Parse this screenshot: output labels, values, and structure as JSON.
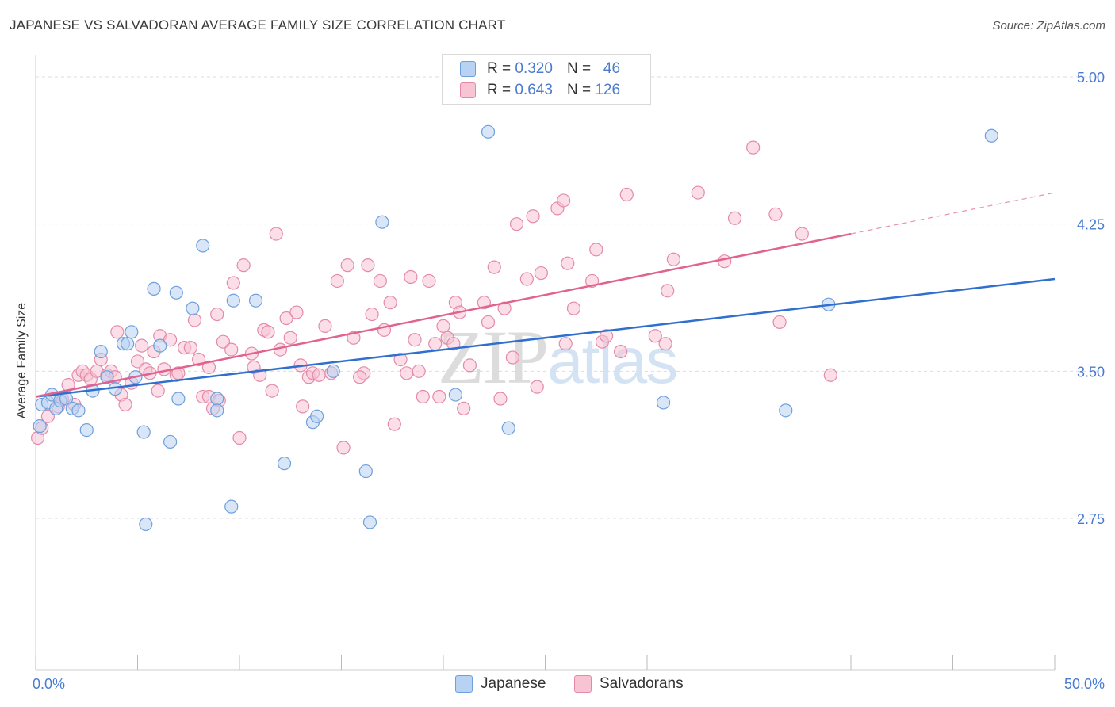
{
  "title": "JAPANESE VS SALVADORAN AVERAGE FAMILY SIZE CORRELATION CHART",
  "source": "Source: ZipAtlas.com",
  "watermark": {
    "part1": "ZIP",
    "part2": "atlas"
  },
  "legend": {
    "rows": [
      {
        "r_label": "R = ",
        "r_value": "0.320",
        "n_label": "N = ",
        "n_value": "46"
      },
      {
        "r_label": "R = ",
        "r_value": "0.643",
        "n_label": "N = ",
        "n_value": "126"
      }
    ]
  },
  "bottom_legend": {
    "series1": "Japanese",
    "series2": "Salvadorans"
  },
  "colors": {
    "japanese_fill": "#b8d2f3",
    "japanese_stroke": "#6f9fdc",
    "japanese_line": "#2f6fd0",
    "salvadoran_fill": "#f8c3d3",
    "salvadoran_stroke": "#e48aa8",
    "salvadoran_line": "#e0628f",
    "tick_text": "#4a7bd0",
    "grid": "#dddddd"
  },
  "chart_data": {
    "type": "scatter",
    "title": "JAPANESE VS SALVADORAN AVERAGE FAMILY SIZE CORRELATION CHART",
    "xlabel": "",
    "ylabel": "Average Family Size",
    "xlim": [
      0,
      50
    ],
    "ylim": [
      2.0,
      5.1
    ],
    "x_tick_labels": [
      "0.0%",
      "50.0%"
    ],
    "y_ticks": [
      2.75,
      3.5,
      4.25,
      5.0
    ],
    "y_tick_labels": [
      "2.75",
      "3.50",
      "4.25",
      "5.00"
    ],
    "grid": "horizontal dashed",
    "legend_position": "top-center",
    "series": [
      {
        "name": "Japanese",
        "R": 0.32,
        "N": 46,
        "trend": {
          "x": [
            0,
            50
          ],
          "y": [
            3.37,
            3.97
          ],
          "dashed_from": null
        },
        "points": [
          [
            0.3,
            3.33
          ],
          [
            0.6,
            3.34
          ],
          [
            0.8,
            3.38
          ],
          [
            1.0,
            3.31
          ],
          [
            1.2,
            3.35
          ],
          [
            1.5,
            3.36
          ],
          [
            1.8,
            3.31
          ],
          [
            2.1,
            3.3
          ],
          [
            2.5,
            3.2
          ],
          [
            2.8,
            3.4
          ],
          [
            3.2,
            3.6
          ],
          [
            3.5,
            3.47
          ],
          [
            3.9,
            3.41
          ],
          [
            4.3,
            3.64
          ],
          [
            4.5,
            3.64
          ],
          [
            4.7,
            3.7
          ],
          [
            4.9,
            3.47
          ],
          [
            5.3,
            3.19
          ],
          [
            5.8,
            3.92
          ],
          [
            6.1,
            3.63
          ],
          [
            6.6,
            3.14
          ],
          [
            6.9,
            3.9
          ],
          [
            7.0,
            3.36
          ],
          [
            7.7,
            3.82
          ],
          [
            8.2,
            4.14
          ],
          [
            8.9,
            3.36
          ],
          [
            8.9,
            3.3
          ],
          [
            9.6,
            2.81
          ],
          [
            9.7,
            3.86
          ],
          [
            10.8,
            3.86
          ],
          [
            12.2,
            3.03
          ],
          [
            13.6,
            3.24
          ],
          [
            13.8,
            3.27
          ],
          [
            14.6,
            3.5
          ],
          [
            16.2,
            2.99
          ],
          [
            16.4,
            2.73
          ],
          [
            17.0,
            4.26
          ],
          [
            20.6,
            3.38
          ],
          [
            22.2,
            4.72
          ],
          [
            23.2,
            3.21
          ],
          [
            30.8,
            3.34
          ],
          [
            36.8,
            3.3
          ],
          [
            38.9,
            3.84
          ],
          [
            46.9,
            4.7
          ],
          [
            5.4,
            2.72
          ],
          [
            0.2,
            3.22
          ]
        ]
      },
      {
        "name": "Salvadorans",
        "R": 0.643,
        "N": 126,
        "trend": {
          "x": [
            0,
            40,
            50
          ],
          "y": [
            3.37,
            4.2,
            4.41
          ],
          "dashed_from": 40
        },
        "points": [
          [
            0.1,
            3.16
          ],
          [
            0.3,
            3.21
          ],
          [
            0.6,
            3.27
          ],
          [
            1.1,
            3.32
          ],
          [
            1.3,
            3.36
          ],
          [
            1.6,
            3.43
          ],
          [
            1.9,
            3.33
          ],
          [
            2.1,
            3.48
          ],
          [
            2.3,
            3.5
          ],
          [
            2.5,
            3.48
          ],
          [
            2.7,
            3.46
          ],
          [
            3.0,
            3.5
          ],
          [
            3.2,
            3.56
          ],
          [
            3.5,
            3.48
          ],
          [
            3.7,
            3.5
          ],
          [
            3.9,
            3.47
          ],
          [
            4.0,
            3.7
          ],
          [
            4.2,
            3.38
          ],
          [
            4.4,
            3.33
          ],
          [
            4.7,
            3.44
          ],
          [
            5.0,
            3.55
          ],
          [
            5.2,
            3.63
          ],
          [
            5.4,
            3.51
          ],
          [
            5.6,
            3.49
          ],
          [
            5.8,
            3.6
          ],
          [
            6.0,
            3.4
          ],
          [
            6.1,
            3.68
          ],
          [
            6.3,
            3.51
          ],
          [
            6.6,
            3.66
          ],
          [
            6.9,
            3.48
          ],
          [
            7.0,
            3.49
          ],
          [
            7.3,
            3.62
          ],
          [
            7.6,
            3.62
          ],
          [
            7.8,
            3.76
          ],
          [
            8.0,
            3.56
          ],
          [
            8.2,
            3.37
          ],
          [
            8.5,
            3.37
          ],
          [
            8.7,
            3.31
          ],
          [
            8.9,
            3.79
          ],
          [
            9.2,
            3.65
          ],
          [
            9.6,
            3.61
          ],
          [
            9.7,
            3.95
          ],
          [
            10.0,
            3.16
          ],
          [
            10.2,
            4.04
          ],
          [
            10.6,
            3.59
          ],
          [
            10.7,
            3.52
          ],
          [
            11.0,
            3.48
          ],
          [
            11.2,
            3.71
          ],
          [
            11.4,
            3.7
          ],
          [
            11.6,
            3.4
          ],
          [
            11.8,
            4.2
          ],
          [
            12.0,
            3.61
          ],
          [
            12.3,
            3.77
          ],
          [
            12.5,
            3.67
          ],
          [
            12.8,
            3.8
          ],
          [
            13.0,
            3.53
          ],
          [
            13.1,
            3.32
          ],
          [
            13.4,
            3.47
          ],
          [
            13.6,
            3.49
          ],
          [
            13.9,
            3.48
          ],
          [
            14.2,
            3.73
          ],
          [
            14.5,
            3.49
          ],
          [
            14.8,
            3.96
          ],
          [
            15.1,
            3.11
          ],
          [
            15.3,
            4.04
          ],
          [
            15.6,
            3.67
          ],
          [
            16.1,
            3.49
          ],
          [
            16.3,
            4.04
          ],
          [
            16.5,
            3.79
          ],
          [
            16.9,
            3.96
          ],
          [
            17.1,
            3.71
          ],
          [
            17.4,
            3.85
          ],
          [
            17.6,
            3.23
          ],
          [
            17.9,
            3.56
          ],
          [
            18.4,
            3.98
          ],
          [
            18.6,
            3.66
          ],
          [
            18.8,
            3.5
          ],
          [
            19.0,
            3.37
          ],
          [
            19.3,
            3.96
          ],
          [
            19.6,
            3.64
          ],
          [
            19.8,
            3.37
          ],
          [
            20.0,
            3.73
          ],
          [
            20.2,
            3.67
          ],
          [
            20.5,
            3.64
          ],
          [
            20.6,
            3.85
          ],
          [
            20.8,
            3.8
          ],
          [
            21.0,
            3.31
          ],
          [
            21.3,
            3.53
          ],
          [
            22.0,
            3.85
          ],
          [
            22.2,
            3.75
          ],
          [
            22.5,
            4.03
          ],
          [
            22.8,
            3.36
          ],
          [
            23.0,
            3.82
          ],
          [
            23.4,
            3.57
          ],
          [
            23.6,
            4.25
          ],
          [
            24.1,
            3.97
          ],
          [
            24.4,
            4.29
          ],
          [
            24.6,
            3.42
          ],
          [
            24.8,
            4.0
          ],
          [
            25.6,
            4.33
          ],
          [
            25.9,
            4.37
          ],
          [
            26.1,
            4.05
          ],
          [
            26.4,
            3.82
          ],
          [
            27.3,
            3.96
          ],
          [
            27.5,
            4.12
          ],
          [
            27.8,
            3.65
          ],
          [
            28.0,
            3.68
          ],
          [
            29.0,
            4.4
          ],
          [
            30.4,
            3.68
          ],
          [
            31.0,
            3.91
          ],
          [
            31.3,
            4.07
          ],
          [
            32.5,
            4.41
          ],
          [
            33.8,
            4.06
          ],
          [
            34.3,
            4.28
          ],
          [
            35.2,
            4.64
          ],
          [
            36.3,
            4.3
          ],
          [
            36.5,
            3.75
          ],
          [
            37.6,
            4.2
          ],
          [
            39.0,
            3.48
          ],
          [
            28.7,
            3.6
          ],
          [
            30.9,
            3.64
          ],
          [
            15.9,
            3.47
          ],
          [
            18.2,
            3.49
          ],
          [
            26.0,
            3.64
          ],
          [
            9.0,
            3.35
          ],
          [
            8.5,
            3.52
          ]
        ]
      }
    ]
  }
}
